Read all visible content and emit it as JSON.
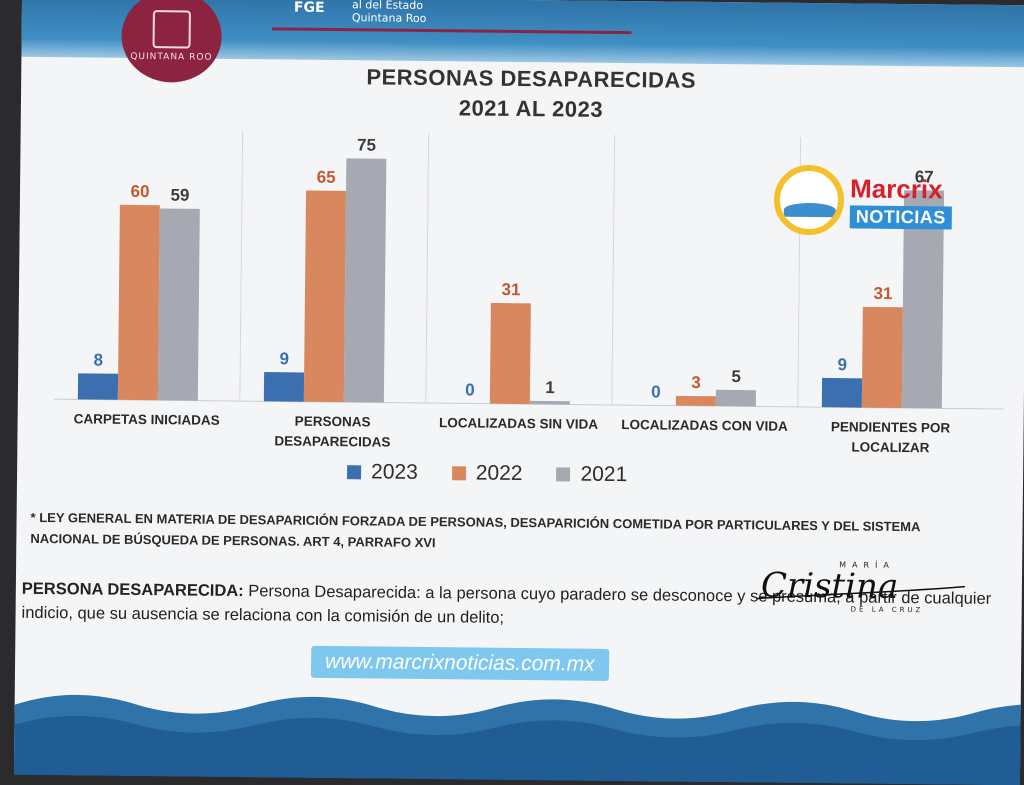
{
  "header": {
    "seal_text": "QUINTANA ROO",
    "org_short": "FGE",
    "org_line1": "al del Estado",
    "org_line2": "Quintana Roo"
  },
  "title_line1": "PERSONAS DESAPARECIDAS",
  "title_line2": "2021 AL 2023",
  "chart_data": {
    "type": "bar",
    "categories": [
      "CARPETAS INICIADAS",
      "PERSONAS DESAPARECIDAS",
      "LOCALIZADAS SIN VIDA",
      "LOCALIZADAS CON VIDA",
      "PENDIENTES POR LOCALIZAR"
    ],
    "category_lines": [
      [
        "CARPETAS INICIADAS"
      ],
      [
        "PERSONAS",
        "DESAPARECIDAS"
      ],
      [
        "LOCALIZADAS SIN VIDA"
      ],
      [
        "LOCALIZADAS CON VIDA"
      ],
      [
        "PENDIENTES POR",
        "LOCALIZAR"
      ]
    ],
    "series": [
      {
        "name": "2023",
        "values": [
          8,
          9,
          0,
          0,
          9
        ],
        "color": "#3b6fb0",
        "label_color": "#3b6fb0"
      },
      {
        "name": "2022",
        "values": [
          60,
          65,
          31,
          3,
          31
        ],
        "color": "#d9875f",
        "label_color": "#c4582e"
      },
      {
        "name": "2021",
        "values": [
          59,
          75,
          1,
          5,
          67
        ],
        "color": "#a6a8b2",
        "label_color": "#3d3d3d"
      }
    ],
    "ylim": [
      0,
      80
    ],
    "grid": false,
    "legend_position": "bottom"
  },
  "legend": [
    "2023",
    "2022",
    "2021"
  ],
  "note": "* LEY GENERAL EN MATERIA DE DESAPARICIÓN FORZADA DE PERSONAS, DESAPARICIÓN COMETIDA POR PARTICULARES Y DEL SISTEMA NACIONAL DE BÚSQUEDA DE PERSONAS. ART 4, PARRAFO XVI",
  "definition_label": "PERSONA DESAPARECIDA:",
  "definition_text": "Persona Desaparecida: a la persona cuyo paradero se desconoce y se presuma, a partir de cualquier indicio, que su ausencia se relaciona con la comisión de un delito;",
  "signature": {
    "name": "Cristina",
    "top": "MARÍA",
    "bottom": "DE LA CRUZ"
  },
  "url": "www.marcrixnoticias.com.mx",
  "brand": {
    "name": "Marcrix",
    "sub": "NOTICIAS"
  }
}
